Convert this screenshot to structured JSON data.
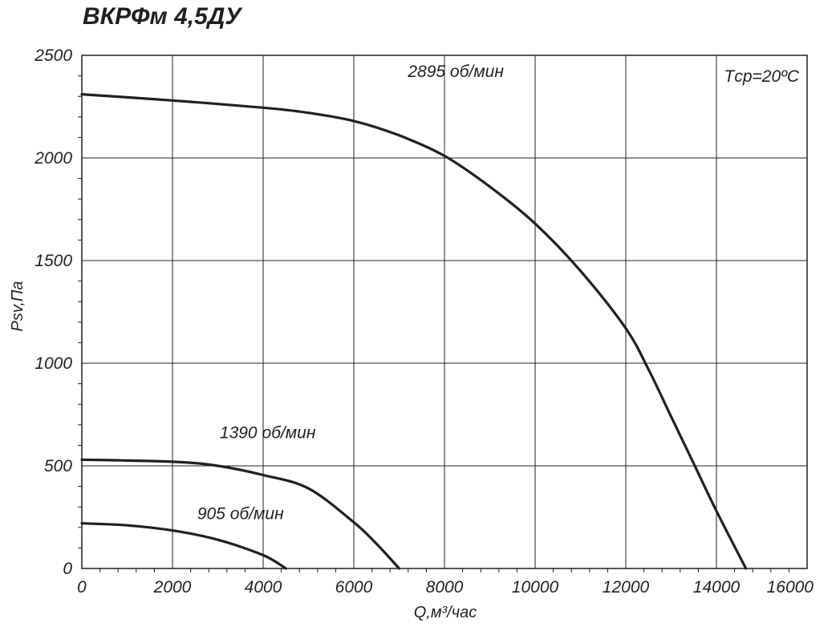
{
  "title": "ВКРФм 4,5ДУ",
  "annotation": "Tср=20ºС",
  "chart_data": {
    "type": "line",
    "title": "ВКРФм 4,5ДУ",
    "xlabel": "Q,м³/час",
    "ylabel": "Psv,Па",
    "xlim": [
      0,
      16000
    ],
    "ylim": [
      0,
      2500
    ],
    "xticks": [
      0,
      2000,
      4000,
      6000,
      8000,
      10000,
      12000,
      14000,
      16000
    ],
    "yticks": [
      0,
      500,
      1000,
      1500,
      2000,
      2500
    ],
    "xtick_labels": [
      "0",
      "2000",
      "4000",
      "6000",
      "8000",
      "10000",
      "12000",
      "14000",
      "16000"
    ],
    "ytick_labels": [
      "0",
      "500",
      "1000",
      "1500",
      "2000",
      "2500"
    ],
    "grid": true,
    "series": [
      {
        "name": "2895 об/мин",
        "x": [
          0,
          2000,
          4000,
          5000,
          6000,
          7000,
          8000,
          9000,
          10000,
          11000,
          12000,
          12500,
          13000,
          13500,
          14000,
          14650
        ],
        "y": [
          2310,
          2280,
          2245,
          2220,
          2180,
          2110,
          2010,
          1860,
          1680,
          1450,
          1170,
          970,
          740,
          510,
          280,
          0
        ]
      },
      {
        "name": "1390 об/мин",
        "x": [
          0,
          2000,
          3000,
          4000,
          5000,
          6000,
          6500,
          7000
        ],
        "y": [
          530,
          520,
          500,
          455,
          390,
          225,
          120,
          0
        ]
      },
      {
        "name": "905 об/мин",
        "x": [
          0,
          1000,
          2000,
          3000,
          4000,
          4500
        ],
        "y": [
          220,
          210,
          185,
          140,
          65,
          0
        ]
      }
    ],
    "series_labels": [
      {
        "text": "2895 об/мин",
        "x": 8250,
        "y": 2395
      },
      {
        "text": "1390 об/мин",
        "x": 4100,
        "y": 635
      },
      {
        "text": "905 об/мин",
        "x": 3500,
        "y": 240
      }
    ]
  }
}
